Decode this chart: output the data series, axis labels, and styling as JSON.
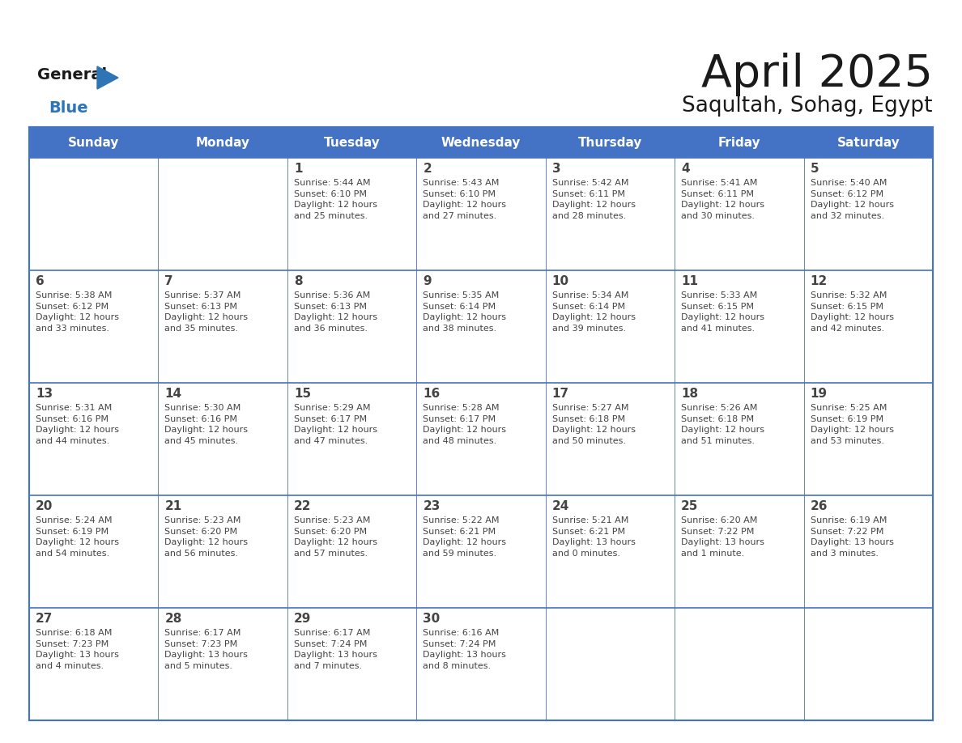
{
  "title": "April 2025",
  "subtitle": "Saqultah, Sohag, Egypt",
  "days_of_week": [
    "Sunday",
    "Monday",
    "Tuesday",
    "Wednesday",
    "Thursday",
    "Friday",
    "Saturday"
  ],
  "header_bg": "#4472C4",
  "header_text": "#FFFFFF",
  "cell_bg_light": "#FFFFFF",
  "cell_bg_alt": "#F0F4FA",
  "border_color": "#4472C4",
  "row_line_color": "#4472C4",
  "text_color": "#444444",
  "title_color": "#1a1a1a",
  "logo_general_color": "#1a1a1a",
  "logo_blue_color": "#2E75B6",
  "logo_triangle_color": "#2E75B6",
  "weeks": [
    [
      {
        "day": null,
        "text": ""
      },
      {
        "day": null,
        "text": ""
      },
      {
        "day": 1,
        "text": "Sunrise: 5:44 AM\nSunset: 6:10 PM\nDaylight: 12 hours\nand 25 minutes."
      },
      {
        "day": 2,
        "text": "Sunrise: 5:43 AM\nSunset: 6:10 PM\nDaylight: 12 hours\nand 27 minutes."
      },
      {
        "day": 3,
        "text": "Sunrise: 5:42 AM\nSunset: 6:11 PM\nDaylight: 12 hours\nand 28 minutes."
      },
      {
        "day": 4,
        "text": "Sunrise: 5:41 AM\nSunset: 6:11 PM\nDaylight: 12 hours\nand 30 minutes."
      },
      {
        "day": 5,
        "text": "Sunrise: 5:40 AM\nSunset: 6:12 PM\nDaylight: 12 hours\nand 32 minutes."
      }
    ],
    [
      {
        "day": 6,
        "text": "Sunrise: 5:38 AM\nSunset: 6:12 PM\nDaylight: 12 hours\nand 33 minutes."
      },
      {
        "day": 7,
        "text": "Sunrise: 5:37 AM\nSunset: 6:13 PM\nDaylight: 12 hours\nand 35 minutes."
      },
      {
        "day": 8,
        "text": "Sunrise: 5:36 AM\nSunset: 6:13 PM\nDaylight: 12 hours\nand 36 minutes."
      },
      {
        "day": 9,
        "text": "Sunrise: 5:35 AM\nSunset: 6:14 PM\nDaylight: 12 hours\nand 38 minutes."
      },
      {
        "day": 10,
        "text": "Sunrise: 5:34 AM\nSunset: 6:14 PM\nDaylight: 12 hours\nand 39 minutes."
      },
      {
        "day": 11,
        "text": "Sunrise: 5:33 AM\nSunset: 6:15 PM\nDaylight: 12 hours\nand 41 minutes."
      },
      {
        "day": 12,
        "text": "Sunrise: 5:32 AM\nSunset: 6:15 PM\nDaylight: 12 hours\nand 42 minutes."
      }
    ],
    [
      {
        "day": 13,
        "text": "Sunrise: 5:31 AM\nSunset: 6:16 PM\nDaylight: 12 hours\nand 44 minutes."
      },
      {
        "day": 14,
        "text": "Sunrise: 5:30 AM\nSunset: 6:16 PM\nDaylight: 12 hours\nand 45 minutes."
      },
      {
        "day": 15,
        "text": "Sunrise: 5:29 AM\nSunset: 6:17 PM\nDaylight: 12 hours\nand 47 minutes."
      },
      {
        "day": 16,
        "text": "Sunrise: 5:28 AM\nSunset: 6:17 PM\nDaylight: 12 hours\nand 48 minutes."
      },
      {
        "day": 17,
        "text": "Sunrise: 5:27 AM\nSunset: 6:18 PM\nDaylight: 12 hours\nand 50 minutes."
      },
      {
        "day": 18,
        "text": "Sunrise: 5:26 AM\nSunset: 6:18 PM\nDaylight: 12 hours\nand 51 minutes."
      },
      {
        "day": 19,
        "text": "Sunrise: 5:25 AM\nSunset: 6:19 PM\nDaylight: 12 hours\nand 53 minutes."
      }
    ],
    [
      {
        "day": 20,
        "text": "Sunrise: 5:24 AM\nSunset: 6:19 PM\nDaylight: 12 hours\nand 54 minutes."
      },
      {
        "day": 21,
        "text": "Sunrise: 5:23 AM\nSunset: 6:20 PM\nDaylight: 12 hours\nand 56 minutes."
      },
      {
        "day": 22,
        "text": "Sunrise: 5:23 AM\nSunset: 6:20 PM\nDaylight: 12 hours\nand 57 minutes."
      },
      {
        "day": 23,
        "text": "Sunrise: 5:22 AM\nSunset: 6:21 PM\nDaylight: 12 hours\nand 59 minutes."
      },
      {
        "day": 24,
        "text": "Sunrise: 5:21 AM\nSunset: 6:21 PM\nDaylight: 13 hours\nand 0 minutes."
      },
      {
        "day": 25,
        "text": "Sunrise: 6:20 AM\nSunset: 7:22 PM\nDaylight: 13 hours\nand 1 minute."
      },
      {
        "day": 26,
        "text": "Sunrise: 6:19 AM\nSunset: 7:22 PM\nDaylight: 13 hours\nand 3 minutes."
      }
    ],
    [
      {
        "day": 27,
        "text": "Sunrise: 6:18 AM\nSunset: 7:23 PM\nDaylight: 13 hours\nand 4 minutes."
      },
      {
        "day": 28,
        "text": "Sunrise: 6:17 AM\nSunset: 7:23 PM\nDaylight: 13 hours\nand 5 minutes."
      },
      {
        "day": 29,
        "text": "Sunrise: 6:17 AM\nSunset: 7:24 PM\nDaylight: 13 hours\nand 7 minutes."
      },
      {
        "day": 30,
        "text": "Sunrise: 6:16 AM\nSunset: 7:24 PM\nDaylight: 13 hours\nand 8 minutes."
      },
      {
        "day": null,
        "text": ""
      },
      {
        "day": null,
        "text": ""
      },
      {
        "day": null,
        "text": ""
      }
    ]
  ],
  "fig_width": 11.88,
  "fig_height": 9.18,
  "dpi": 100
}
